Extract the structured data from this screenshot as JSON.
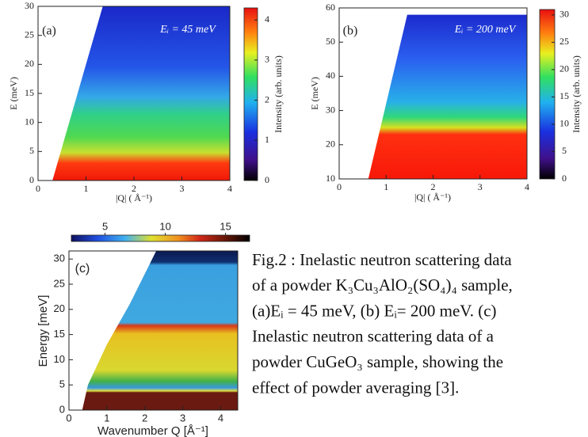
{
  "panels": [
    {
      "label": "(a)",
      "annotation": "Eᵢ = 45 meV",
      "xlabel": "|Q| ( Å⁻¹)",
      "ylabel": "E (meV)",
      "xlim": [
        0,
        4
      ],
      "xticks": [
        0,
        1,
        2,
        3,
        4
      ],
      "ylim": [
        0,
        30
      ],
      "yticks": [
        0,
        5,
        10,
        15,
        20,
        25,
        30
      ],
      "colorbar": {
        "label": "Intensity (arb. units)",
        "lim": [
          0,
          4.3
        ],
        "ticks": [
          0,
          1,
          2,
          3,
          4
        ]
      }
    },
    {
      "label": "(b)",
      "annotation": "Eᵢ = 200 meV",
      "xlabel": "|Q| ( Å⁻¹)",
      "ylabel": "E (meV)",
      "xlim": [
        0,
        4
      ],
      "xticks": [
        0,
        1,
        2,
        3,
        4
      ],
      "ylim": [
        10,
        60
      ],
      "yticks": [
        10,
        20,
        30,
        40,
        50,
        60
      ],
      "colorbar": {
        "label": "Intensity (arb. units)",
        "lim": [
          0,
          31
        ],
        "ticks": [
          0,
          5,
          10,
          15,
          20,
          25,
          30
        ]
      }
    },
    {
      "label": "(c)",
      "xlabel": "Wavenumber Q [Å⁻¹]",
      "ylabel": "Energy [meV]",
      "xlim": [
        0,
        4.45
      ],
      "xticks": [
        0,
        1,
        2,
        3,
        4
      ],
      "ylim": [
        0,
        31.6
      ],
      "yticks": [
        0,
        5,
        10,
        15,
        20,
        25,
        30
      ],
      "colorbar": {
        "lim": [
          2.2,
          17
        ],
        "ticks": [
          5,
          10,
          15
        ]
      }
    }
  ],
  "caption": {
    "lines": [
      "Fig.2 : Inelastic neutron scattering data",
      "of a powder  K₃Cu₃AlO₂(SO₄)₄ sample,",
      "(a)Eᵢ  = 45 meV, (b) Eᵢ= 200 meV.  (c)",
      "Inelastic neutron scattering data of a",
      "powder CuGeO₃ sample, showing the",
      "effect of powder averaging [3]."
    ]
  }
}
